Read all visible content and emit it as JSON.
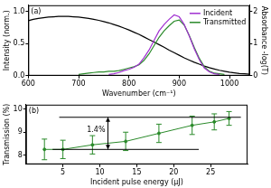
{
  "chart_data": [
    {
      "type": "line",
      "title": "(a)",
      "x_label": "Wavenumber (cm⁻¹)",
      "y_label": "Intensity (norm.)",
      "y2_label": "Absorbance -log(T)",
      "x": [
        600,
        610,
        620,
        630,
        640,
        650,
        660,
        670,
        680,
        690,
        700,
        710,
        720,
        730,
        740,
        750,
        760,
        770,
        780,
        790,
        800,
        810,
        820,
        830,
        840,
        850,
        860,
        870,
        880,
        890,
        900,
        910,
        920,
        930,
        940,
        950,
        960,
        970,
        980,
        990,
        1000,
        1010,
        1020,
        1030,
        1040
      ],
      "series": [
        {
          "name": "Incident",
          "color": "#a030d0",
          "values": [
            null,
            null,
            null,
            null,
            null,
            null,
            null,
            null,
            null,
            null,
            null,
            null,
            null,
            null,
            null,
            null,
            0.02,
            0.03,
            0.05,
            0.08,
            0.1,
            0.13,
            0.18,
            0.28,
            0.4,
            0.55,
            0.7,
            0.8,
            0.88,
            0.95,
            0.92,
            0.8,
            0.62,
            0.42,
            0.25,
            0.12,
            0.06,
            0.03,
            0.02,
            null,
            null,
            null,
            null,
            null,
            null
          ]
        },
        {
          "name": "Transmitted",
          "color": "#2a8a2a",
          "values": [
            null,
            null,
            null,
            null,
            null,
            null,
            null,
            null,
            null,
            null,
            0.02,
            0.03,
            0.04,
            0.05,
            0.06,
            0.06,
            0.07,
            0.07,
            0.08,
            0.1,
            0.12,
            0.14,
            0.17,
            0.24,
            0.34,
            0.47,
            0.6,
            0.7,
            0.78,
            0.85,
            0.87,
            0.79,
            0.63,
            0.44,
            0.27,
            0.14,
            0.07,
            0.04,
            0.03,
            0.02,
            null,
            null,
            null,
            null,
            null
          ]
        },
        {
          "color": "#000000",
          "axis": "y2",
          "values": [
            1.72,
            1.76,
            1.79,
            1.81,
            1.83,
            1.84,
            1.85,
            1.85,
            1.85,
            1.84,
            1.83,
            1.81,
            1.79,
            1.76,
            1.73,
            1.69,
            1.65,
            1.6,
            1.55,
            1.49,
            1.43,
            1.36,
            1.29,
            1.21,
            1.13,
            1.05,
            0.97,
            0.89,
            0.8,
            0.72,
            0.64,
            0.56,
            0.49,
            0.42,
            0.36,
            0.3,
            0.25,
            0.21,
            0.17,
            0.14,
            0.11,
            0.09,
            0.07,
            0.06,
            0.05
          ]
        }
      ],
      "xlim": [
        600,
        1040
      ],
      "xticks": [
        600,
        700,
        800,
        900,
        1000
      ],
      "ylim": [
        0,
        1.1
      ],
      "yticks": [
        {
          "value": 0,
          "label": "0.0"
        },
        {
          "value": 0.5,
          "label": "0.5"
        },
        {
          "value": 1,
          "label": "1.0"
        }
      ],
      "y2lim": [
        0,
        2.2
      ],
      "y2ticks": [
        0,
        1,
        2
      ],
      "grid": false,
      "legend": "upper right"
    },
    {
      "type": "line",
      "title": "(b)",
      "x_label": "Incident pulse energy (µJ)",
      "y_label": "Transmission (%)",
      "x": [
        2.5,
        5,
        9,
        13.5,
        18,
        22.5,
        25.5,
        27.5
      ],
      "values": [
        8.25,
        8.25,
        8.45,
        8.6,
        8.95,
        9.3,
        9.45,
        9.6
      ],
      "errors": [
        0.45,
        0.4,
        0.4,
        0.4,
        0.4,
        0.4,
        0.35,
        0.3
      ],
      "color": "#2a8a2a",
      "marker": "circle",
      "xlim": [
        0,
        30
      ],
      "xticks": [
        5,
        10,
        15,
        20,
        25
      ],
      "ylim": [
        7.6,
        10.2
      ],
      "yticks": [
        8,
        9,
        10
      ],
      "grid": false,
      "annotation": {
        "text": "1.4%",
        "from": 8.25,
        "to": 9.65
      }
    }
  ]
}
